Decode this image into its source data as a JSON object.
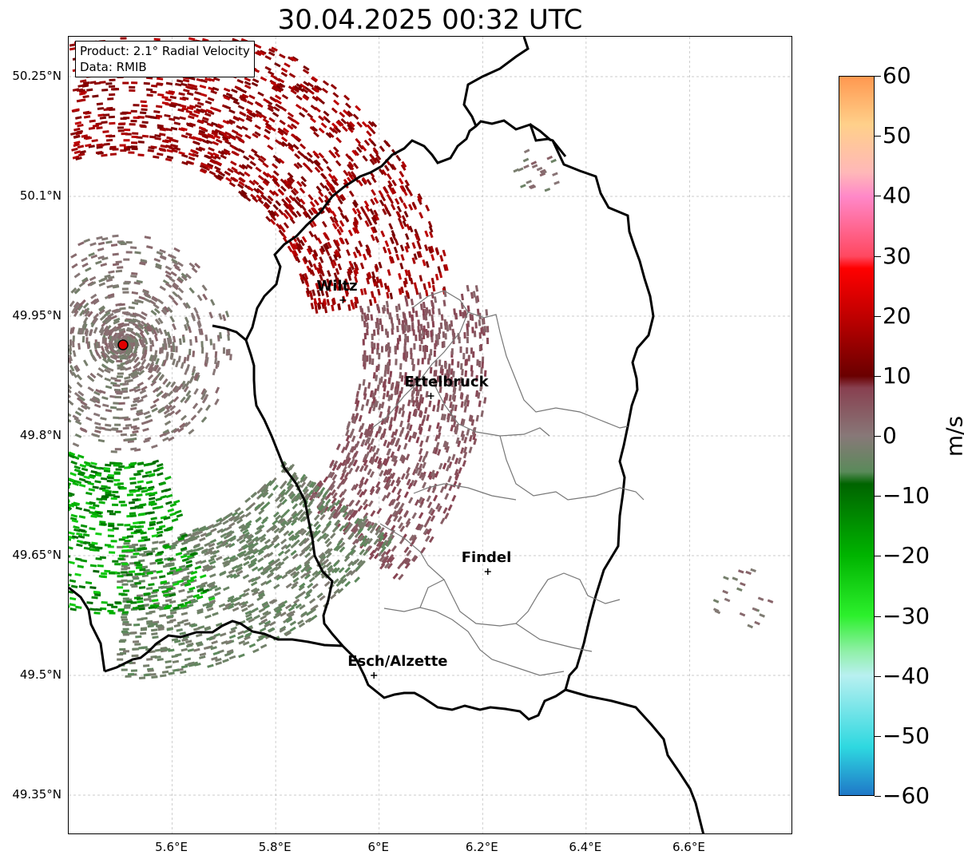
{
  "title": "30.04.2025 00:32 UTC",
  "info_box": {
    "line1": "Product: 2.1° Radial Velocity",
    "line2": "Data: RMIB"
  },
  "axes": {
    "lat_ticks": [
      "50.25°N",
      "50.1°N",
      "49.95°N",
      "49.8°N",
      "49.65°N",
      "49.5°N",
      "49.35°N"
    ],
    "lat_values": [
      50.25,
      50.1,
      49.95,
      49.8,
      49.65,
      49.5,
      49.35
    ],
    "lon_ticks": [
      "5.6°E",
      "5.8°E",
      "6°E",
      "6.2°E",
      "6.4°E",
      "6.6°E"
    ],
    "lon_values": [
      5.6,
      5.8,
      6.0,
      6.2,
      6.4,
      6.6
    ],
    "lon_range": [
      5.4,
      6.8
    ],
    "lat_range": [
      49.3,
      50.3
    ]
  },
  "cities": [
    {
      "name": "Wiltz",
      "lon": 5.93,
      "lat": 49.97
    },
    {
      "name": "Ettelbruck",
      "lon": 6.1,
      "lat": 49.85
    },
    {
      "name": "Findel",
      "lon": 6.21,
      "lat": 49.63
    },
    {
      "name": "Esch/Alzette",
      "lon": 5.99,
      "lat": 49.5
    }
  ],
  "radar_site": {
    "lon": 5.505,
    "lat": 49.914,
    "color": "#e00000"
  },
  "colorbar": {
    "label": "m/s",
    "min": -60,
    "max": 60,
    "ticks": [
      "60",
      "50",
      "40",
      "30",
      "20",
      "10",
      "0",
      "−10",
      "−20",
      "−30",
      "−40",
      "−50",
      "−60"
    ],
    "tick_values": [
      60,
      50,
      40,
      30,
      20,
      10,
      0,
      -10,
      -20,
      -30,
      -40,
      -50,
      -60
    ],
    "stops": [
      {
        "v": -60,
        "color": "#1f78c8"
      },
      {
        "v": -52,
        "color": "#2ed8e0"
      },
      {
        "v": -40,
        "color": "#b8f0f0"
      },
      {
        "v": -36,
        "color": "#90f0a8"
      },
      {
        "v": -30,
        "color": "#2cf02c"
      },
      {
        "v": -20,
        "color": "#00b400"
      },
      {
        "v": -8,
        "color": "#006400"
      },
      {
        "v": -6,
        "color": "#5a8a5a"
      },
      {
        "v": 0,
        "color": "#887878"
      },
      {
        "v": 8,
        "color": "#884050"
      },
      {
        "v": 10,
        "color": "#6a0000"
      },
      {
        "v": 20,
        "color": "#c00000"
      },
      {
        "v": 28,
        "color": "#ff0000"
      },
      {
        "v": 30,
        "color": "#ff4860"
      },
      {
        "v": 40,
        "color": "#ff88c8"
      },
      {
        "v": 44,
        "color": "#ffb8b8"
      },
      {
        "v": 52,
        "color": "#ffd08a"
      },
      {
        "v": 60,
        "color": "#ff9850"
      }
    ]
  }
}
